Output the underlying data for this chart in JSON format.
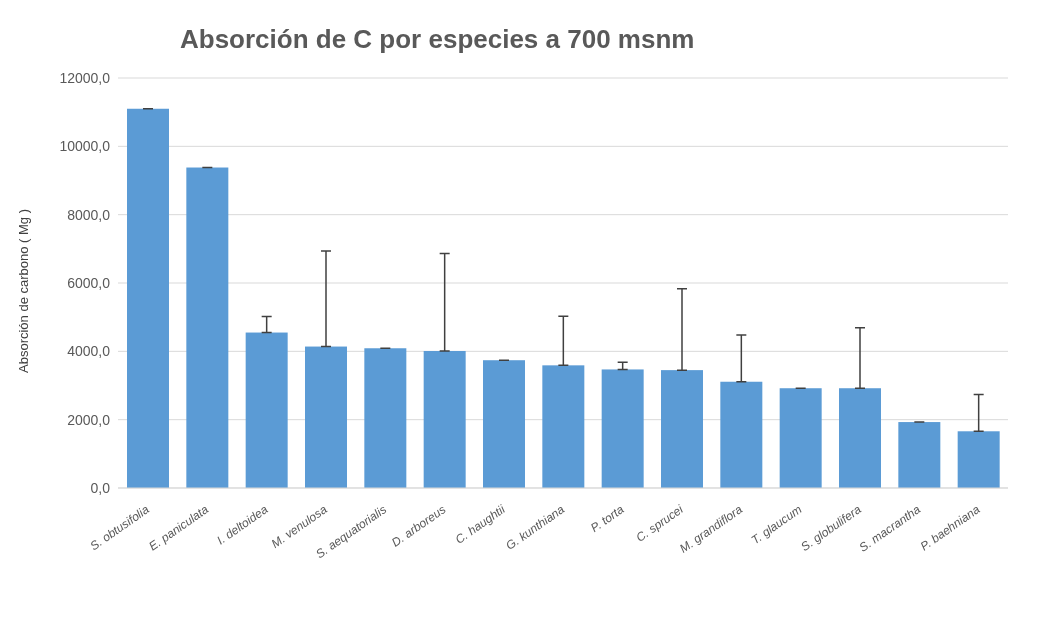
{
  "chart_data": {
    "type": "bar",
    "title": "Absorción de C por especies a 700 msnm",
    "ylabel": "Absorción de carbono ( Mg )",
    "categories": [
      "S. obtusifolia",
      "E. paniculata",
      "I. deltoidea",
      "M. venulosa",
      "S. aequatorialis",
      "D. arboreus",
      "C. haughtii",
      "G. kunthiana",
      "P. torta",
      "C. sprucei",
      "M. grandiflora",
      "T. glaucum",
      "S. globulifera",
      "S. macrantha",
      "P. baehniana"
    ],
    "values": [
      11100,
      9380,
      4550,
      4140,
      4090,
      4010,
      3740,
      3590,
      3470,
      3450,
      3110,
      2920,
      2920,
      1930,
      1660
    ],
    "errors": [
      [
        11100,
        11100
      ],
      [
        9380,
        9380
      ],
      [
        4550,
        5020
      ],
      [
        4140,
        6940
      ],
      [
        4090,
        4090
      ],
      [
        4010,
        6860
      ],
      [
        3740,
        3740
      ],
      [
        3590,
        5030
      ],
      [
        3470,
        3680
      ],
      [
        3450,
        5830
      ],
      [
        3110,
        4480
      ],
      [
        2920,
        2920
      ],
      [
        2920,
        4690
      ],
      [
        1930,
        1930
      ],
      [
        1660,
        2740
      ]
    ],
    "color": "#5b9bd5",
    "ylim": [
      0,
      12000
    ],
    "yticks": [
      {
        "value": 0,
        "label": "0,0"
      },
      {
        "value": 2000,
        "label": "2000,0"
      },
      {
        "value": 4000,
        "label": "4000,0"
      },
      {
        "value": 6000,
        "label": "6000,0"
      },
      {
        "value": 8000,
        "label": "8000,0"
      },
      {
        "value": 10000,
        "label": "10000,0"
      },
      {
        "value": 12000,
        "label": "12000,0"
      }
    ],
    "grid": "y",
    "legend": false
  }
}
